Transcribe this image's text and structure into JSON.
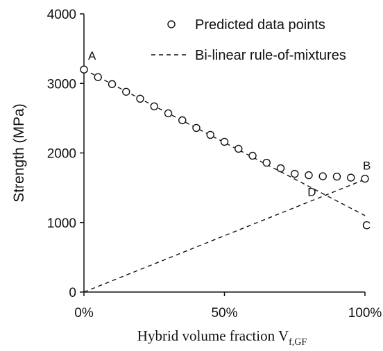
{
  "chart_data": {
    "type": "scatter",
    "xlabel": "Hybrid volume fraction V",
    "xlabel_subscript": "f,GF",
    "ylabel": "Strength (MPa)",
    "xlim": [
      0,
      100
    ],
    "ylim": [
      0,
      4000
    ],
    "x_ticks": [
      0,
      50,
      100
    ],
    "x_tick_labels": [
      "0%",
      "50%",
      "100%"
    ],
    "y_ticks": [
      0,
      1000,
      2000,
      3000,
      4000
    ],
    "y_tick_labels": [
      "0",
      "1000",
      "2000",
      "3000",
      "4000"
    ],
    "grid": false,
    "legend_position": "top-right",
    "series": [
      {
        "name": "Predicted data points",
        "style": "open-circle",
        "x": [
          0,
          5,
          10,
          15,
          20,
          25,
          30,
          35,
          40,
          45,
          50,
          55,
          60,
          65,
          70,
          75,
          80,
          85,
          90,
          95,
          100
        ],
        "y": [
          3200,
          3090,
          2990,
          2880,
          2780,
          2670,
          2570,
          2470,
          2360,
          2260,
          2160,
          2060,
          1960,
          1860,
          1780,
          1700,
          1680,
          1665,
          1660,
          1645,
          1630
        ]
      },
      {
        "name": "Bi-linear rule-of-mixtures",
        "style": "dashed",
        "lines": [
          {
            "x": [
              0,
              100
            ],
            "y": [
              3200,
              1100
            ]
          },
          {
            "x": [
              0,
              100
            ],
            "y": [
              0,
              1620
            ]
          }
        ]
      }
    ],
    "annotations": [
      {
        "text": "A",
        "x": 0,
        "y": 3200
      },
      {
        "text": "B",
        "x": 100,
        "y": 1620
      },
      {
        "text": "C",
        "x": 100,
        "y": 1100
      },
      {
        "text": "D",
        "x": 86,
        "y": 1400
      }
    ]
  }
}
